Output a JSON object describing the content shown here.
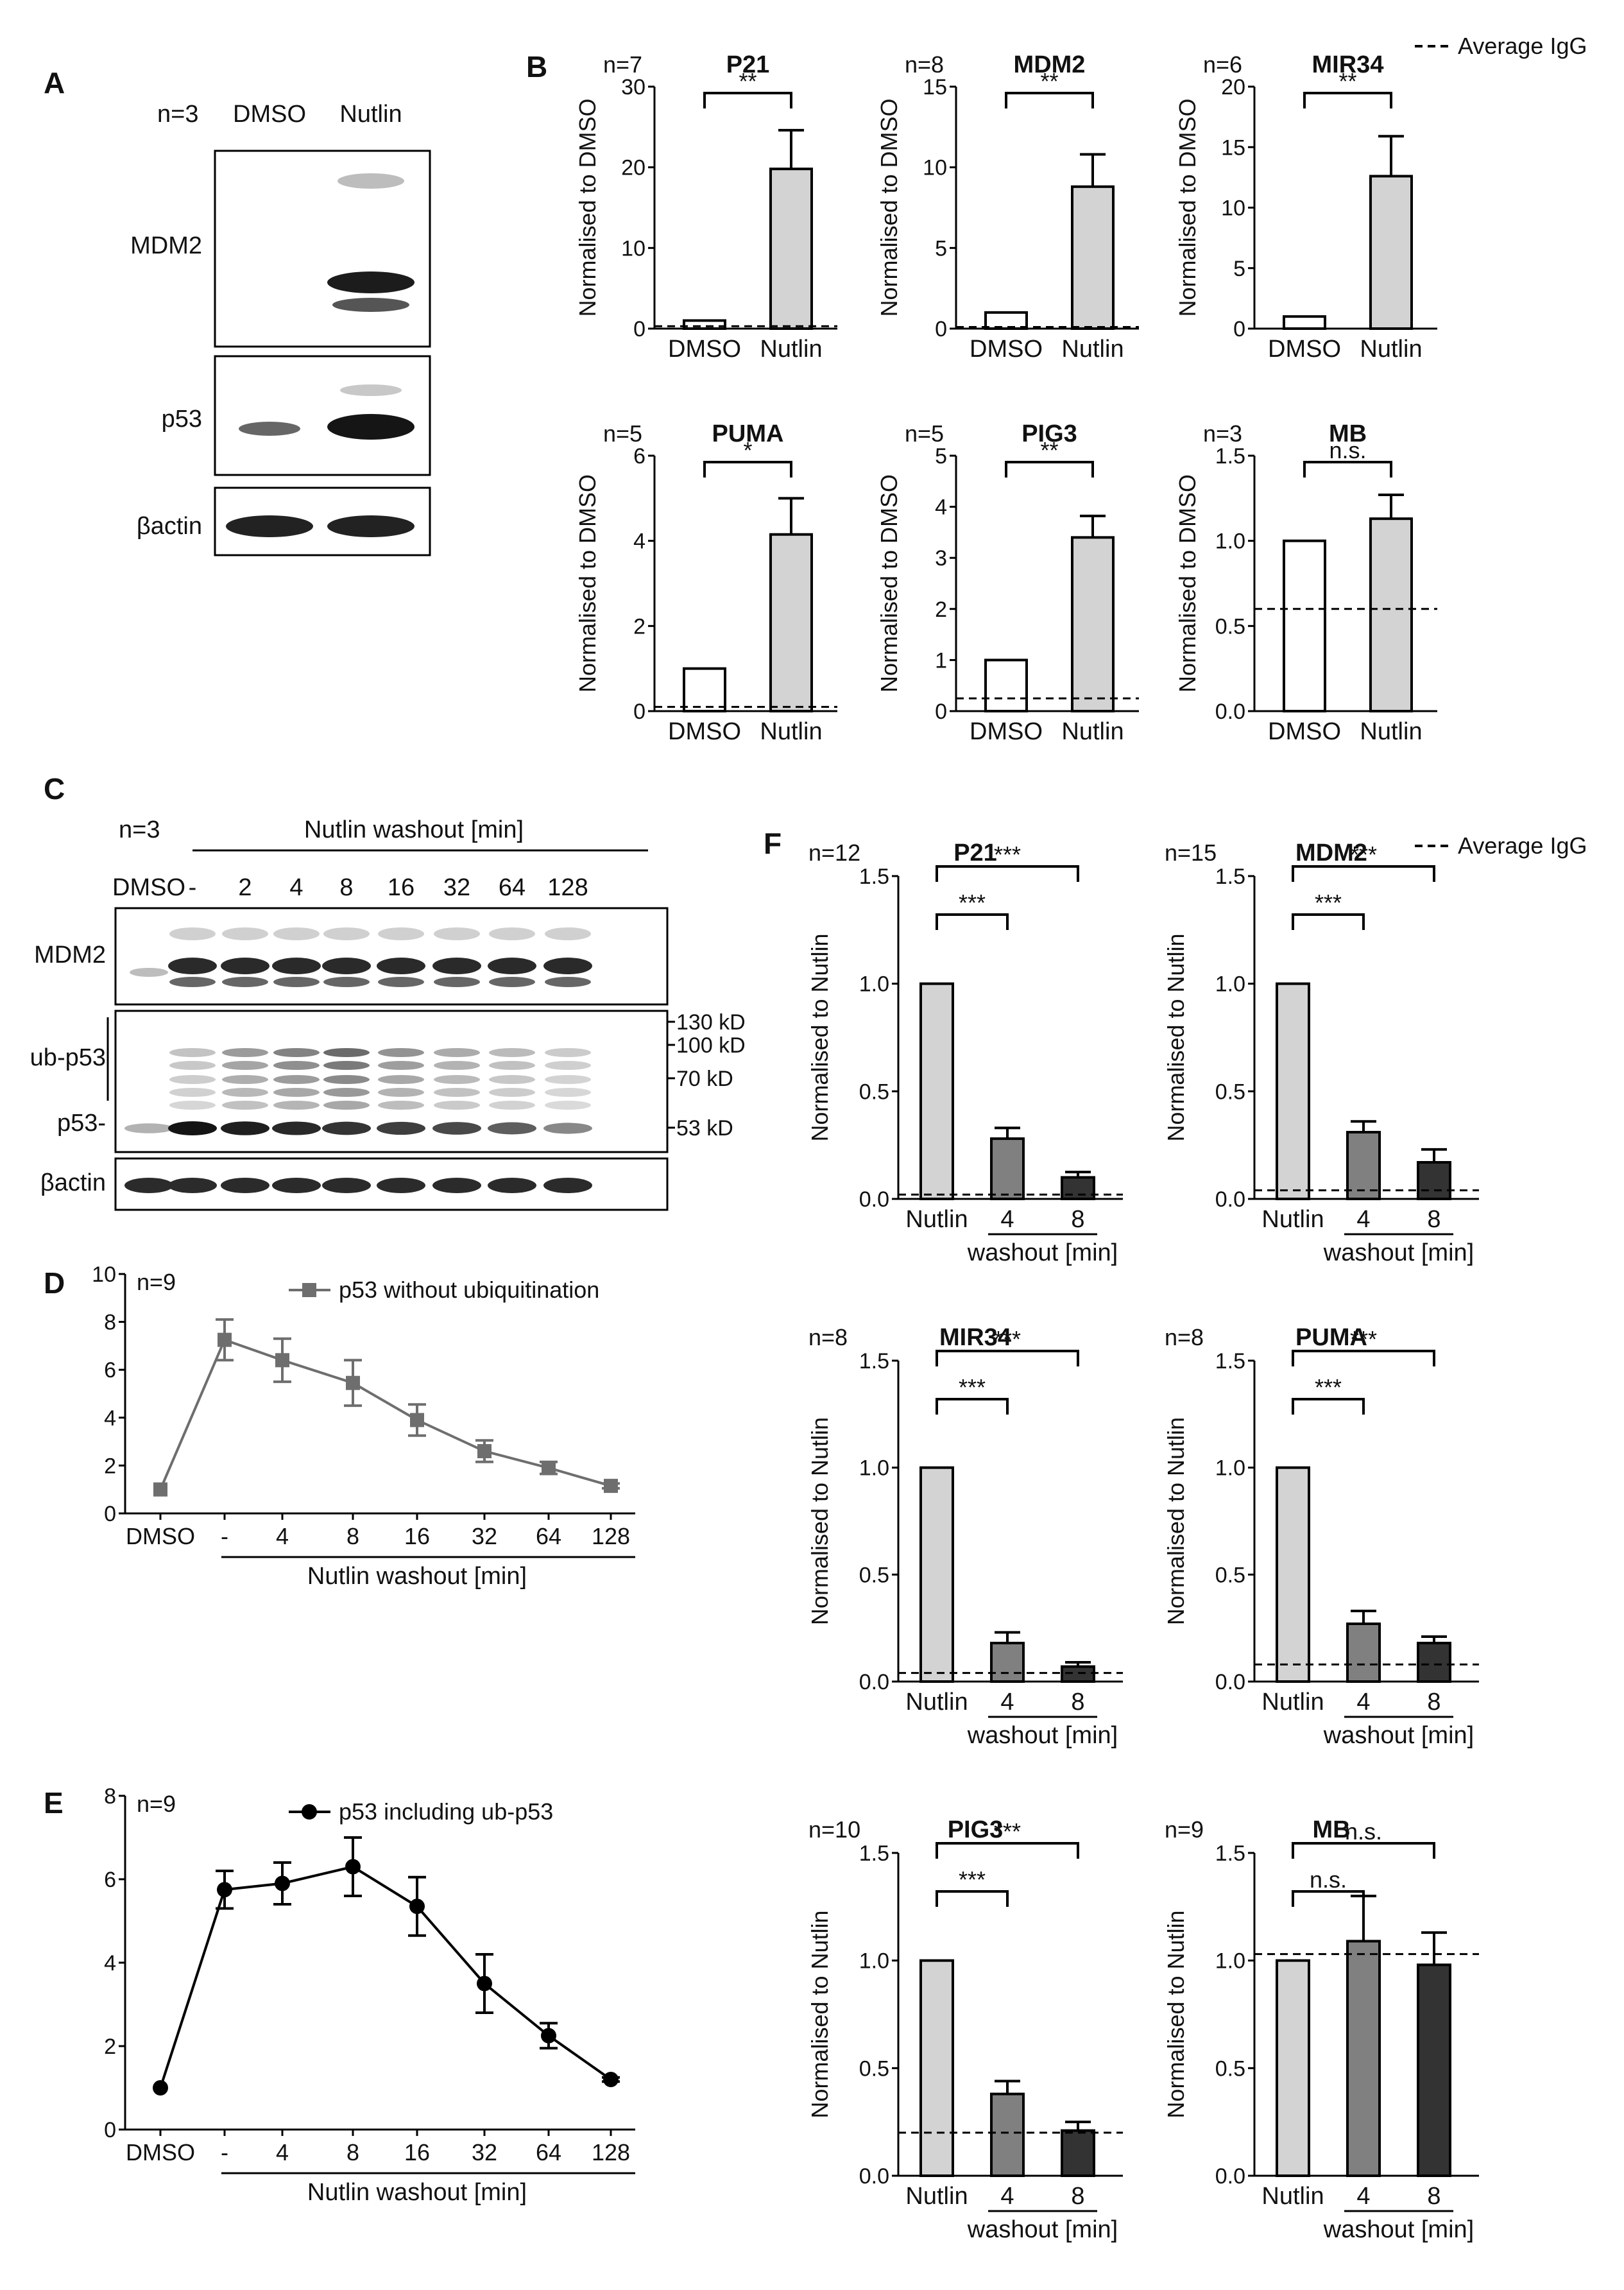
{
  "legend_iggb": "Average IgG",
  "legend_iggf": "Average IgG",
  "panels": [
    {
      "id": "A",
      "label": "A"
    },
    {
      "id": "B",
      "label": "B"
    },
    {
      "id": "C",
      "label": "C"
    },
    {
      "id": "D",
      "label": "D"
    },
    {
      "id": "E",
      "label": "E"
    },
    {
      "id": "F",
      "label": "F"
    }
  ],
  "blot_a": {
    "n": "n=3",
    "lanes": [
      "DMSO",
      "Nutlin"
    ],
    "rows": [
      "MDM2",
      "p53",
      "βactin"
    ]
  },
  "blot_c": {
    "n": "n=3",
    "header": "Nutlin washout [min]",
    "lanes": [
      "DMSO",
      "-",
      "2",
      "4",
      "8",
      "16",
      "32",
      "64",
      "128"
    ],
    "rows": [
      "MDM2",
      "ub-p53",
      "p53-",
      "βactin"
    ],
    "markers": [
      "130 kD",
      "100 kD",
      "70 kD",
      "53 kD"
    ]
  },
  "chart_data": [
    {
      "type": "bar",
      "panel": "B",
      "title": "P21",
      "n": "n=7",
      "ylabel": "Normalised to DMSO",
      "categories": [
        "DMSO",
        "Nutlin"
      ],
      "values": [
        1,
        19.8
      ],
      "errors": [
        0,
        4.8
      ],
      "ylim": [
        0,
        30
      ],
      "yticks": [
        "0",
        "10",
        "20",
        "30"
      ],
      "igg": 0.3,
      "sig": [
        {
          "from": 0,
          "to": 1,
          "label": "**"
        }
      ]
    },
    {
      "type": "bar",
      "panel": "B",
      "title": "MDM2",
      "n": "n=8",
      "ylabel": "Normalised to DMSO",
      "categories": [
        "DMSO",
        "Nutlin"
      ],
      "values": [
        1,
        8.8
      ],
      "errors": [
        0,
        2.0
      ],
      "ylim": [
        0,
        15
      ],
      "yticks": [
        "0",
        "5",
        "10",
        "15"
      ],
      "igg": 0.1,
      "sig": [
        {
          "from": 0,
          "to": 1,
          "label": "**"
        }
      ]
    },
    {
      "type": "bar",
      "panel": "B",
      "title": "MIR34",
      "n": "n=6",
      "ylabel": "Normalised to DMSO",
      "categories": [
        "DMSO",
        "Nutlin"
      ],
      "values": [
        1,
        12.6
      ],
      "errors": [
        0,
        3.3
      ],
      "ylim": [
        0,
        20
      ],
      "yticks": [
        "0",
        "5",
        "10",
        "15",
        "20"
      ],
      "igg": null,
      "sig": [
        {
          "from": 0,
          "to": 1,
          "label": "**"
        }
      ]
    },
    {
      "type": "bar",
      "panel": "B",
      "title": "PUMA",
      "n": "n=5",
      "ylabel": "Normalised to DMSO",
      "categories": [
        "DMSO",
        "Nutlin"
      ],
      "values": [
        1,
        4.15
      ],
      "errors": [
        0,
        0.85
      ],
      "ylim": [
        0,
        6
      ],
      "yticks": [
        "0",
        "2",
        "4",
        "6"
      ],
      "igg": 0.1,
      "sig": [
        {
          "from": 0,
          "to": 1,
          "label": "*"
        }
      ]
    },
    {
      "type": "bar",
      "panel": "B",
      "title": "PIG3",
      "n": "n=5",
      "ylabel": "Normalised to DMSO",
      "categories": [
        "DMSO",
        "Nutlin"
      ],
      "values": [
        1,
        3.4
      ],
      "errors": [
        0,
        0.42
      ],
      "ylim": [
        0,
        5
      ],
      "yticks": [
        "0",
        "1",
        "2",
        "3",
        "4",
        "5"
      ],
      "igg": 0.25,
      "sig": [
        {
          "from": 0,
          "to": 1,
          "label": "**"
        }
      ]
    },
    {
      "type": "bar",
      "panel": "B",
      "title": "MB",
      "n": "n=3",
      "ylabel": "Normalised to DMSO",
      "categories": [
        "DMSO",
        "Nutlin"
      ],
      "values": [
        1,
        1.13
      ],
      "errors": [
        0,
        0.14
      ],
      "ylim": [
        0,
        1.5
      ],
      "yticks": [
        "0.0",
        "0.5",
        "1.0",
        "1.5"
      ],
      "igg": 0.6,
      "sig": [
        {
          "from": 0,
          "to": 1,
          "label": "n.s."
        }
      ]
    },
    {
      "type": "line",
      "panel": "D",
      "n": "n=9",
      "legend": "p53 without ubiquitination",
      "marker": "square",
      "color": "#6e6e6e",
      "categories": [
        "DMSO",
        "-",
        "4",
        "8",
        "16",
        "32",
        "64",
        "128"
      ],
      "values": [
        1.0,
        7.25,
        6.4,
        5.45,
        3.9,
        2.6,
        1.9,
        1.15
      ],
      "errors": [
        0,
        0.85,
        0.9,
        0.95,
        0.65,
        0.45,
        0.25,
        0.1
      ],
      "ylim": [
        0,
        10
      ],
      "yticks": [
        "0",
        "2",
        "4",
        "6",
        "8",
        "10"
      ],
      "xlabel": "Nutlin washout [min]"
    },
    {
      "type": "line",
      "panel": "E",
      "n": "n=9",
      "legend": "p53 including ub-p53",
      "marker": "circle",
      "color": "#000000",
      "categories": [
        "DMSO",
        "-",
        "4",
        "8",
        "16",
        "32",
        "64",
        "128"
      ],
      "values": [
        1.0,
        5.75,
        5.9,
        6.3,
        5.35,
        3.5,
        2.25,
        1.2
      ],
      "errors": [
        0,
        0.45,
        0.5,
        0.7,
        0.7,
        0.7,
        0.3,
        0.05
      ],
      "ylim": [
        0,
        8
      ],
      "yticks": [
        "0",
        "2",
        "4",
        "6",
        "8"
      ],
      "xlabel": "Nutlin washout [min]"
    },
    {
      "type": "bar",
      "panel": "F",
      "title": "P21",
      "n": "n=12",
      "ylabel": "Normalised to Nutlin",
      "categories": [
        "Nutlin",
        "4",
        "8"
      ],
      "values": [
        1,
        0.28,
        0.1
      ],
      "errors": [
        0,
        0.05,
        0.025
      ],
      "ylim": [
        0,
        1.5
      ],
      "yticks": [
        "0.0",
        "0.5",
        "1.0",
        "1.5"
      ],
      "igg": 0.02,
      "xlabel": "washout [min]",
      "sig": [
        {
          "from": 0,
          "to": 1,
          "label": "***"
        },
        {
          "from": 0,
          "to": 2,
          "label": "***"
        }
      ]
    },
    {
      "type": "bar",
      "panel": "F",
      "title": "MDM2",
      "n": "n=15",
      "ylabel": "Normalised to Nutlin",
      "categories": [
        "Nutlin",
        "4",
        "8"
      ],
      "values": [
        1,
        0.31,
        0.17
      ],
      "errors": [
        0,
        0.05,
        0.06
      ],
      "ylim": [
        0,
        1.5
      ],
      "yticks": [
        "0.0",
        "0.5",
        "1.0",
        "1.5"
      ],
      "igg": 0.04,
      "xlabel": "washout [min]",
      "sig": [
        {
          "from": 0,
          "to": 1,
          "label": "***"
        },
        {
          "from": 0,
          "to": 2,
          "label": "***"
        }
      ]
    },
    {
      "type": "bar",
      "panel": "F",
      "title": "MIR34",
      "n": "n=8",
      "ylabel": "Normalised to Nutlin",
      "categories": [
        "Nutlin",
        "4",
        "8"
      ],
      "values": [
        1,
        0.18,
        0.07
      ],
      "errors": [
        0,
        0.05,
        0.02
      ],
      "ylim": [
        0,
        1.5
      ],
      "yticks": [
        "0.0",
        "0.5",
        "1.0",
        "1.5"
      ],
      "igg": 0.04,
      "xlabel": "washout [min]",
      "sig": [
        {
          "from": 0,
          "to": 1,
          "label": "***"
        },
        {
          "from": 0,
          "to": 2,
          "label": "***"
        }
      ]
    },
    {
      "type": "bar",
      "panel": "F",
      "title": "PUMA",
      "n": "n=8",
      "ylabel": "Normalised to Nutlin",
      "categories": [
        "Nutlin",
        "4",
        "8"
      ],
      "values": [
        1,
        0.27,
        0.18
      ],
      "errors": [
        0,
        0.06,
        0.03
      ],
      "ylim": [
        0,
        1.5
      ],
      "yticks": [
        "0.0",
        "0.5",
        "1.0",
        "1.5"
      ],
      "igg": 0.08,
      "xlabel": "washout [min]",
      "sig": [
        {
          "from": 0,
          "to": 1,
          "label": "***"
        },
        {
          "from": 0,
          "to": 2,
          "label": "***"
        }
      ]
    },
    {
      "type": "bar",
      "panel": "F",
      "title": "PIG3",
      "n": "n=10",
      "ylabel": "Normalised to Nutlin",
      "categories": [
        "Nutlin",
        "4",
        "8"
      ],
      "values": [
        1,
        0.38,
        0.21
      ],
      "errors": [
        0,
        0.06,
        0.04
      ],
      "ylim": [
        0,
        1.5
      ],
      "yticks": [
        "0.0",
        "0.5",
        "1.0",
        "1.5"
      ],
      "igg": 0.2,
      "xlabel": "washout [min]",
      "sig": [
        {
          "from": 0,
          "to": 1,
          "label": "***"
        },
        {
          "from": 0,
          "to": 2,
          "label": "***"
        }
      ]
    },
    {
      "type": "bar",
      "panel": "F",
      "title": "MB",
      "n": "n=9",
      "ylabel": "Normalised to Nutlin",
      "categories": [
        "Nutlin",
        "4",
        "8"
      ],
      "values": [
        1,
        1.09,
        0.98
      ],
      "errors": [
        0,
        0.21,
        0.15
      ],
      "ylim": [
        0,
        1.5
      ],
      "yticks": [
        "0.0",
        "0.5",
        "1.0",
        "1.5"
      ],
      "igg": 1.03,
      "xlabel": "washout [min]",
      "sig": [
        {
          "from": 0,
          "to": 1,
          "label": "n.s."
        },
        {
          "from": 0,
          "to": 2,
          "label": "n.s."
        }
      ]
    }
  ]
}
